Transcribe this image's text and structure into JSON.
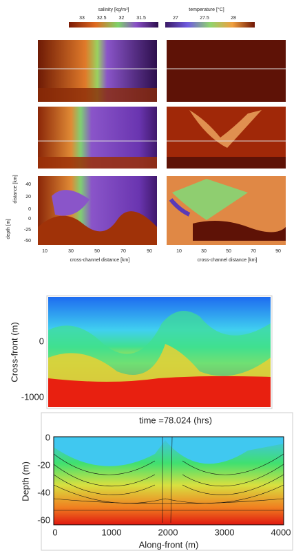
{
  "top_figure": {
    "salinity_colorbar": {
      "title": "salinity [kg/m³]",
      "ticks": [
        33,
        32.5,
        32,
        31.5
      ]
    },
    "temperature_colorbar": {
      "title": "temperature [°C]",
      "ticks": [
        27,
        27.5,
        28
      ]
    },
    "y_axis_distance": {
      "label": "distance [km]",
      "ticks": [
        40,
        20,
        0
      ]
    },
    "y_axis_depth": {
      "label": "depth [m]",
      "ticks": [
        0,
        -25,
        -50
      ]
    },
    "left_x_axis": {
      "label": "cross-channel distance [km]",
      "ticks": [
        10,
        30,
        50,
        70,
        90
      ]
    },
    "right_x_axis": {
      "label": "cross-channel distance [km]",
      "ticks": [
        10,
        30,
        50,
        70,
        90
      ]
    }
  },
  "middle_figure": {
    "y_label": "Cross-front (m)",
    "y_ticks": [
      0,
      -1000
    ]
  },
  "bottom_figure": {
    "title": "time =78.024 (hrs)",
    "y_label": "Depth (m)",
    "y_ticks": [
      0,
      -20,
      -40,
      -60
    ],
    "x_label": "Along-front (m)",
    "x_ticks": [
      0,
      1000,
      2000,
      3000,
      4000
    ]
  }
}
